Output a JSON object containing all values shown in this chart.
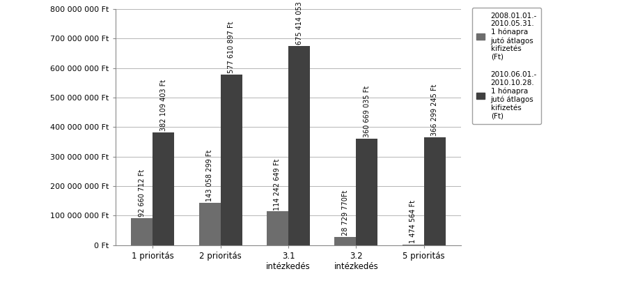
{
  "categories": [
    "1 prioritás",
    "2 prioritás",
    "3.1\nintézkedés",
    "3.2\nintézkedés",
    "5 prioritás"
  ],
  "series1_values": [
    92660712,
    143058299,
    114242649,
    28729770,
    1474564
  ],
  "series2_values": [
    382109403,
    577610897,
    675414053,
    360669035,
    366299245
  ],
  "series1_label": "2008.01.01.-\n2010.05.31.\n1 hónapra\njutó átlagos\nkifizetés\n(Ft)",
  "series2_label": "2010.06.01.-\n2010.10.28.\n1 hónapra\njutó átlagos\nkifizetés\n(Ft)",
  "series1_color": "#6d6d6d",
  "series2_color": "#404040",
  "ylim": [
    0,
    800000000
  ],
  "yticks": [
    0,
    100000000,
    200000000,
    300000000,
    400000000,
    500000000,
    600000000,
    700000000,
    800000000
  ],
  "ytick_labels": [
    "0 Ft",
    "100 000 000 Ft",
    "200 000 000 Ft",
    "300 000 000 Ft",
    "400 000 000 Ft",
    "500 000 000 Ft",
    "600 000 000 Ft",
    "700 000 000 Ft",
    "800 000 000 Ft"
  ],
  "bar_width": 0.32,
  "bg_color": "#ffffff",
  "annotation_fontsize": 7,
  "annotations_s1": [
    "92 660 712 Ft",
    "143 058 299 Ft",
    "114 242 649 Ft",
    "28 729 770Ft",
    "1 474 564 Ft"
  ],
  "annotations_s2": [
    "382 109 403 Ft",
    "577 610 897 Ft",
    "675 414 053 Ft",
    "360 669 035 Ft",
    "366 299 245 Ft"
  ]
}
